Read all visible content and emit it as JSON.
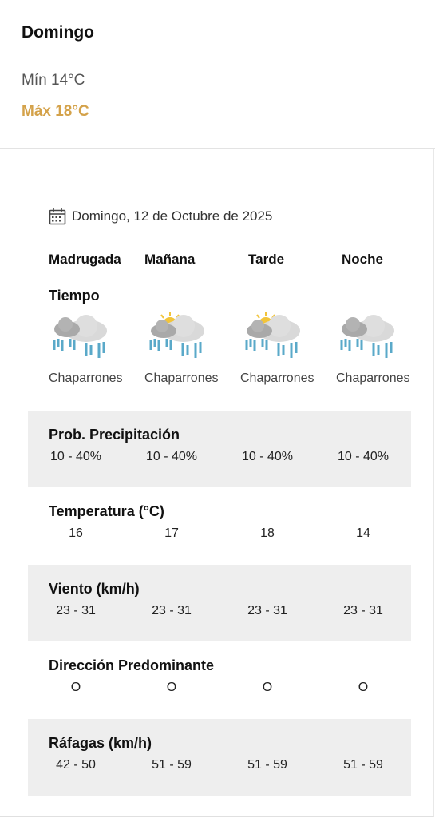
{
  "summary": {
    "day": "Domingo",
    "min": "Mín 14°C",
    "max": "Máx 18°C",
    "max_color": "#d4a24a"
  },
  "date": {
    "icon": "calendar-icon",
    "text": "Domingo, 12 de Octubre de 2025"
  },
  "periods": [
    "Madrugada",
    "Mañana",
    "Tarde",
    "Noche"
  ],
  "tiempo": {
    "title": "Tiempo",
    "items": [
      {
        "icon": "rain-showers-night-icon",
        "label": "Chaparrones"
      },
      {
        "icon": "rain-showers-sun-icon",
        "label": "Chaparrones"
      },
      {
        "icon": "rain-showers-sun-icon",
        "label": "Chaparrones"
      },
      {
        "icon": "rain-showers-night-icon",
        "label": "Chaparrones"
      }
    ]
  },
  "rows": [
    {
      "title": "Prob. Precipitación",
      "values": [
        "10 - 40%",
        "10 - 40%",
        "10 - 40%",
        "10 - 40%"
      ]
    },
    {
      "title": "Temperatura (°C)",
      "values": [
        "16",
        "17",
        "18",
        "14"
      ]
    },
    {
      "title": "Viento (km/h)",
      "values": [
        "23 - 31",
        "23 - 31",
        "23 - 31",
        "23 - 31"
      ]
    },
    {
      "title": "Dirección Predominante",
      "values": [
        "O",
        "O",
        "O",
        "O"
      ]
    },
    {
      "title": "Ráfagas (km/h)",
      "values": [
        "42 - 50",
        "51 - 59",
        "51 - 59",
        "51 - 59"
      ]
    }
  ],
  "colors": {
    "shaded_row": "#eeeeee",
    "rain": "#5aa9c9",
    "sun": "#f2c43a"
  }
}
